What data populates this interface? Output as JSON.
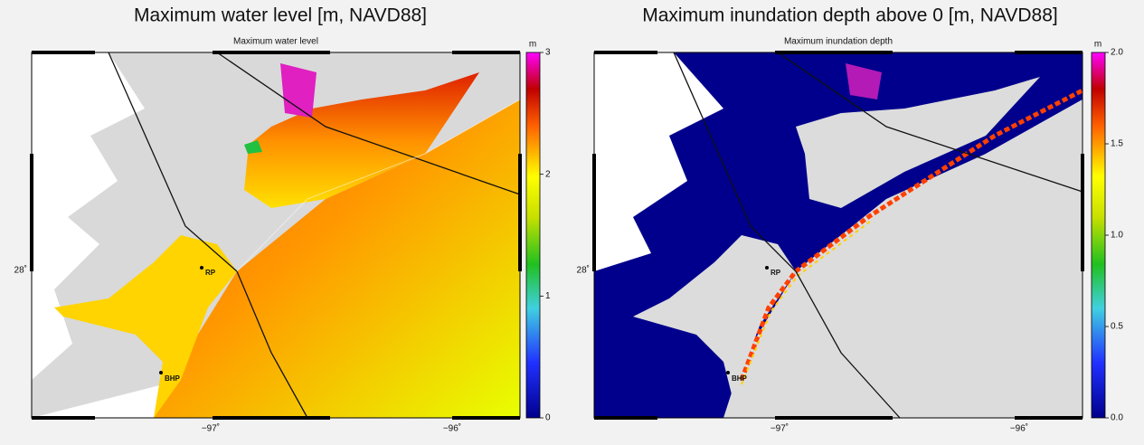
{
  "panels": [
    {
      "title": "Maximum water level [m, NAVD88]",
      "subtitle": "Maximum water level",
      "colorbar": {
        "unit": "m",
        "ticks": [
          "0",
          "1",
          "2",
          "3"
        ]
      },
      "x_labels": [
        "−97˚",
        "−96˚"
      ],
      "y_label": "28˚",
      "sites": [
        "RP",
        "BHP"
      ]
    },
    {
      "title": "Maximum inundation depth above 0 [m, NAVD88]",
      "subtitle": "Maximum inundation depth",
      "colorbar": {
        "unit": "m",
        "ticks": [
          "0.0",
          "0.5",
          "1.0",
          "1.5",
          "2.0"
        ]
      },
      "x_labels": [
        "−97˚",
        "−96˚"
      ],
      "y_label": "28˚",
      "sites": [
        "RP",
        "BHP"
      ]
    }
  ]
}
